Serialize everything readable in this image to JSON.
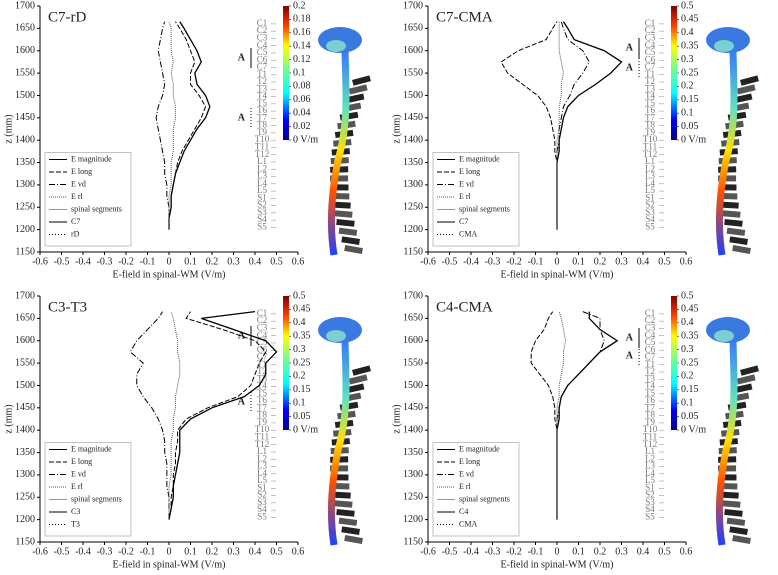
{
  "chart_data": [
    {
      "type": "line",
      "title": "C7-rD",
      "x_label": "E-field in spinal-WM (V/m)",
      "y_label": "z (mm)",
      "xlim": [
        -0.6,
        0.6
      ],
      "xticks": [
        -0.6,
        -0.5,
        -0.4,
        -0.3,
        -0.2,
        -0.1,
        0,
        0.1,
        0.2,
        0.3,
        0.4,
        0.5,
        0.6
      ],
      "ylim": [
        1150,
        1700
      ],
      "yticks": [
        1150,
        1200,
        1250,
        1300,
        1350,
        1400,
        1450,
        1500,
        1550,
        1600,
        1650,
        1700
      ],
      "z": [
        1200,
        1225,
        1250,
        1275,
        1300,
        1325,
        1350,
        1375,
        1400,
        1425,
        1450,
        1475,
        1500,
        1525,
        1550,
        1575,
        1600,
        1625,
        1650,
        1665
      ],
      "series": [
        {
          "name": "E magnitude",
          "color": "#000000",
          "dash": "",
          "values": [
            0,
            0,
            0.01,
            0.01,
            0.02,
            0.03,
            0.05,
            0.07,
            0.1,
            0.13,
            0.17,
            0.19,
            0.17,
            0.13,
            0.12,
            0.15,
            0.13,
            0.1,
            0.07,
            0.05
          ]
        },
        {
          "name": "E long",
          "color": "#000000",
          "dash": "5 2",
          "values": [
            0,
            0,
            0.01,
            0.01,
            0.02,
            0.03,
            0.04,
            0.06,
            0.09,
            0.12,
            0.15,
            0.17,
            0.14,
            0.1,
            0.1,
            0.12,
            0.1,
            0.08,
            0.05,
            0.03
          ]
        },
        {
          "name": "E vd",
          "color": "#000000",
          "dash": "6 2 1 2",
          "values": [
            0,
            0,
            0,
            -0.01,
            -0.01,
            -0.02,
            -0.02,
            -0.03,
            -0.04,
            -0.05,
            -0.06,
            -0.05,
            -0.03,
            -0.02,
            -0.03,
            -0.04,
            -0.05,
            -0.04,
            -0.03,
            -0.02
          ]
        },
        {
          "name": "E rl",
          "color": "#555555",
          "dash": "1 1",
          "values": [
            0,
            0,
            0,
            0,
            0.01,
            0.01,
            0.01,
            0.02,
            0.02,
            0.02,
            0.03,
            0.03,
            0.02,
            0.02,
            0.01,
            0.02,
            0.01,
            0.01,
            0.01,
            0
          ]
        }
      ],
      "legend_extra": [
        {
          "name": "spinal segments",
          "color": "#999999",
          "dash": ""
        },
        {
          "name": "C7",
          "color": "#000000",
          "dash": ""
        },
        {
          "name": "rD",
          "color": "#000000",
          "dash": "1 2"
        }
      ],
      "electrode_labels": [
        "A",
        "A"
      ],
      "vertebra_labels": [
        "C1",
        "C2",
        "C3",
        "C4",
        "C5",
        "C6",
        "C7",
        "T1",
        "T2",
        "T3",
        "T4",
        "T5",
        "T6",
        "T7",
        "T8",
        "T9",
        "T10",
        "T11",
        "T12",
        "L1",
        "L2",
        "L3",
        "L4",
        "L5",
        "S1",
        "S2",
        "S3",
        "S4",
        "S5"
      ],
      "colorbar": {
        "lim": [
          0,
          0.2
        ],
        "ticks": [
          {
            "value": 0,
            "label": "0 V/m"
          },
          0.02,
          0.04,
          0.06,
          0.08,
          0.1,
          0.12,
          0.14,
          0.16,
          0.18,
          0.2
        ]
      }
    },
    {
      "type": "line",
      "title": "C7-CMA",
      "x_label": "E-field in spinal-WM (V/m)",
      "y_label": "z (mm)",
      "xlim": [
        -0.6,
        0.6
      ],
      "xticks": [
        -0.6,
        -0.5,
        -0.4,
        -0.3,
        -0.2,
        -0.1,
        0,
        0.1,
        0.2,
        0.3,
        0.4,
        0.5,
        0.6
      ],
      "ylim": [
        1150,
        1700
      ],
      "yticks": [
        1150,
        1200,
        1250,
        1300,
        1350,
        1400,
        1450,
        1500,
        1550,
        1600,
        1650,
        1700
      ],
      "z": [
        1200,
        1225,
        1250,
        1275,
        1300,
        1325,
        1350,
        1375,
        1400,
        1425,
        1450,
        1475,
        1500,
        1525,
        1550,
        1575,
        1600,
        1625,
        1650,
        1665
      ],
      "series": [
        {
          "name": "E magnitude",
          "color": "#000000",
          "dash": "",
          "values": [
            0,
            0,
            0,
            0,
            0,
            0,
            0,
            0.01,
            0.01,
            0.02,
            0.03,
            0.05,
            0.1,
            0.18,
            0.25,
            0.3,
            0.22,
            0.08,
            0.05,
            0.03
          ]
        },
        {
          "name": "E long",
          "color": "#000000",
          "dash": "5 2",
          "values": [
            0,
            0,
            0,
            0,
            0,
            0,
            0,
            -0.01,
            -0.01,
            -0.02,
            -0.03,
            -0.05,
            -0.09,
            -0.16,
            -0.23,
            -0.26,
            -0.18,
            -0.05,
            -0.02,
            0
          ]
        },
        {
          "name": "E vd",
          "color": "#000000",
          "dash": "6 2 1 2",
          "values": [
            0,
            0,
            0,
            0,
            0,
            0,
            0,
            0,
            0.01,
            0.01,
            0.02,
            0.03,
            0.06,
            0.08,
            0.12,
            0.15,
            0.12,
            0.05,
            0.03,
            0.02
          ]
        },
        {
          "name": "E rl",
          "color": "#555555",
          "dash": "1 1",
          "values": [
            0,
            0,
            0,
            0,
            0,
            0,
            0,
            0,
            0,
            0.01,
            0.01,
            0.01,
            0.02,
            0.02,
            0.03,
            0.02,
            0.01,
            0.01,
            0.01,
            0.01
          ]
        }
      ],
      "legend_extra": [
        {
          "name": "spinal segments",
          "color": "#999999",
          "dash": ""
        },
        {
          "name": "C7",
          "color": "#000000",
          "dash": ""
        },
        {
          "name": "CMA",
          "color": "#000000",
          "dash": "1 2"
        }
      ],
      "electrode_labels": [
        "A",
        "A"
      ],
      "vertebra_labels": [
        "C1",
        "C2",
        "C3",
        "C4",
        "C5",
        "C6",
        "C7",
        "T1",
        "T2",
        "T3",
        "T4",
        "T5",
        "T6",
        "T7",
        "T8",
        "T9",
        "T10",
        "T11",
        "T12",
        "L1",
        "L2",
        "L3",
        "L4",
        "L5",
        "S1",
        "S2",
        "S3",
        "S4",
        "S5"
      ],
      "colorbar": {
        "lim": [
          0,
          0.5
        ],
        "ticks": [
          {
            "value": 0,
            "label": "0 V/m"
          },
          0.05,
          0.1,
          0.15,
          0.2,
          0.25,
          0.3,
          0.35,
          0.4,
          0.45,
          0.5
        ]
      }
    },
    {
      "type": "line",
      "title": "C3-T3",
      "x_label": "E-field in spinal-WM (V/m)",
      "y_label": "z (mm)",
      "xlim": [
        -0.6,
        0.6
      ],
      "xticks": [
        -0.6,
        -0.5,
        -0.4,
        -0.3,
        -0.2,
        -0.1,
        0,
        0.1,
        0.2,
        0.3,
        0.4,
        0.5,
        0.6
      ],
      "ylim": [
        1150,
        1700
      ],
      "yticks": [
        1150,
        1200,
        1250,
        1300,
        1350,
        1400,
        1450,
        1500,
        1550,
        1600,
        1650,
        1700
      ],
      "z": [
        1200,
        1225,
        1250,
        1275,
        1300,
        1325,
        1350,
        1375,
        1400,
        1425,
        1450,
        1475,
        1500,
        1525,
        1550,
        1575,
        1600,
        1625,
        1650,
        1665
      ],
      "series": [
        {
          "name": "E magnitude",
          "color": "#000000",
          "dash": "",
          "values": [
            0,
            0.01,
            0.02,
            0.02,
            0.03,
            0.04,
            0.05,
            0.05,
            0.05,
            0.1,
            0.2,
            0.35,
            0.42,
            0.45,
            0.45,
            0.5,
            0.45,
            0.3,
            0.15,
            0.4
          ]
        },
        {
          "name": "E long",
          "color": "#000000",
          "dash": "5 2",
          "values": [
            0,
            0.01,
            0.01,
            0.02,
            0.02,
            0.03,
            0.03,
            0.04,
            0.04,
            0.08,
            0.18,
            0.32,
            0.38,
            0.4,
            0.42,
            0.45,
            0.4,
            0.25,
            0.08,
            0.1
          ]
        },
        {
          "name": "E vd",
          "color": "#000000",
          "dash": "6 2 1 2",
          "values": [
            0,
            0,
            0,
            -0.01,
            -0.01,
            -0.01,
            -0.02,
            -0.02,
            -0.03,
            -0.05,
            -0.08,
            -0.12,
            -0.15,
            -0.15,
            -0.12,
            -0.18,
            -0.15,
            -0.1,
            -0.05,
            -0.03
          ]
        },
        {
          "name": "E rl",
          "color": "#555555",
          "dash": "1 1",
          "values": [
            0,
            0,
            0,
            0,
            0.01,
            0.01,
            0.01,
            0.01,
            0.02,
            0.02,
            0.03,
            0.03,
            0.04,
            0.05,
            0.05,
            0.04,
            0.04,
            0.03,
            0.02,
            0.01
          ]
        }
      ],
      "legend_extra": [
        {
          "name": "spinal segments",
          "color": "#999999",
          "dash": ""
        },
        {
          "name": "C3",
          "color": "#000000",
          "dash": ""
        },
        {
          "name": "T3",
          "color": "#000000",
          "dash": "1 2"
        }
      ],
      "electrode_labels": [
        "A",
        "A"
      ],
      "vertebra_labels": [
        "C1",
        "C2",
        "C3",
        "C4",
        "C5",
        "C6",
        "C7",
        "T1",
        "T2",
        "T3",
        "T4",
        "T5",
        "T6",
        "T7",
        "T8",
        "T9",
        "T10",
        "T11",
        "T12",
        "L1",
        "L2",
        "L3",
        "L4",
        "L5",
        "S1",
        "S2",
        "S3",
        "S4",
        "S5"
      ],
      "colorbar": {
        "lim": [
          0,
          0.5
        ],
        "ticks": [
          {
            "value": 0,
            "label": "0 V/m"
          },
          0.05,
          0.1,
          0.15,
          0.2,
          0.25,
          0.3,
          0.35,
          0.4,
          0.45,
          0.5
        ]
      }
    },
    {
      "type": "line",
      "title": "C4-CMA",
      "x_label": "E-field in spinal-WM (V/m)",
      "y_label": "z (mm)",
      "xlim": [
        -0.6,
        0.6
      ],
      "xticks": [
        -0.6,
        -0.5,
        -0.4,
        -0.3,
        -0.2,
        -0.1,
        0,
        0.1,
        0.2,
        0.3,
        0.4,
        0.5,
        0.6
      ],
      "ylim": [
        1150,
        1700
      ],
      "yticks": [
        1150,
        1200,
        1250,
        1300,
        1350,
        1400,
        1450,
        1500,
        1550,
        1600,
        1650,
        1700
      ],
      "z": [
        1200,
        1225,
        1250,
        1275,
        1300,
        1325,
        1350,
        1375,
        1400,
        1425,
        1450,
        1475,
        1500,
        1525,
        1550,
        1575,
        1600,
        1625,
        1650,
        1665
      ],
      "series": [
        {
          "name": "E magnitude",
          "color": "#000000",
          "dash": "",
          "values": [
            0,
            0,
            0,
            0,
            0,
            0,
            0,
            0,
            0,
            0.01,
            0.01,
            0.02,
            0.05,
            0.1,
            0.15,
            0.2,
            0.28,
            0.2,
            0.15,
            0.15
          ]
        },
        {
          "name": "E long",
          "color": "#000000",
          "dash": "5 2",
          "values": [
            0,
            0,
            0,
            0,
            0,
            0,
            0,
            0,
            0,
            -0.01,
            -0.01,
            -0.02,
            -0.04,
            -0.08,
            -0.12,
            -0.12,
            -0.1,
            -0.06,
            -0.04,
            -0.02
          ]
        },
        {
          "name": "E vd",
          "color": "#000000",
          "dash": "6 2 1 2",
          "values": [
            0,
            0,
            0,
            0,
            0,
            0,
            0,
            0,
            0,
            0,
            0.01,
            0.02,
            0.05,
            0.1,
            0.15,
            0.2,
            0.22,
            0.2,
            0.2,
            0.12
          ]
        },
        {
          "name": "E rl",
          "color": "#555555",
          "dash": "1 1",
          "values": [
            0,
            0,
            0,
            0,
            0,
            0,
            0,
            0,
            0,
            0,
            0,
            0.01,
            0.01,
            0.02,
            0.03,
            0.03,
            0.04,
            0.03,
            0.02,
            0.01
          ]
        }
      ],
      "legend_extra": [
        {
          "name": "spinal segments",
          "color": "#999999",
          "dash": ""
        },
        {
          "name": "C4",
          "color": "#000000",
          "dash": ""
        },
        {
          "name": "CMA",
          "color": "#000000",
          "dash": "1 2"
        }
      ],
      "electrode_labels": [
        "A",
        "A"
      ],
      "vertebra_labels": [
        "C1",
        "C2",
        "C3",
        "C4",
        "C5",
        "C6",
        "C7",
        "T1",
        "T2",
        "T3",
        "T4",
        "T5",
        "T6",
        "T7",
        "T8",
        "T9",
        "T10",
        "T11",
        "T12",
        "L1",
        "L2",
        "L3",
        "L4",
        "L5",
        "S1",
        "S2",
        "S3",
        "S4",
        "S5"
      ],
      "colorbar": {
        "lim": [
          0,
          0.5
        ],
        "ticks": [
          {
            "value": 0,
            "label": "0 V/m"
          },
          0.05,
          0.1,
          0.15,
          0.2,
          0.25,
          0.3,
          0.35,
          0.4,
          0.45,
          0.5
        ]
      }
    }
  ]
}
